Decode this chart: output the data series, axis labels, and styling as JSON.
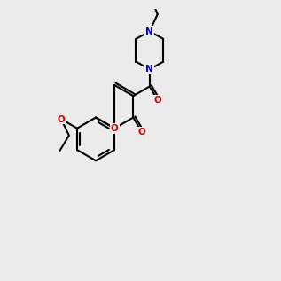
{
  "bg_color": "#ebebeb",
  "bond_color": "#000000",
  "N_color": "#0000cc",
  "O_color": "#cc0000",
  "lw": 1.5,
  "dbo": 0.09,
  "fs": 7.5
}
